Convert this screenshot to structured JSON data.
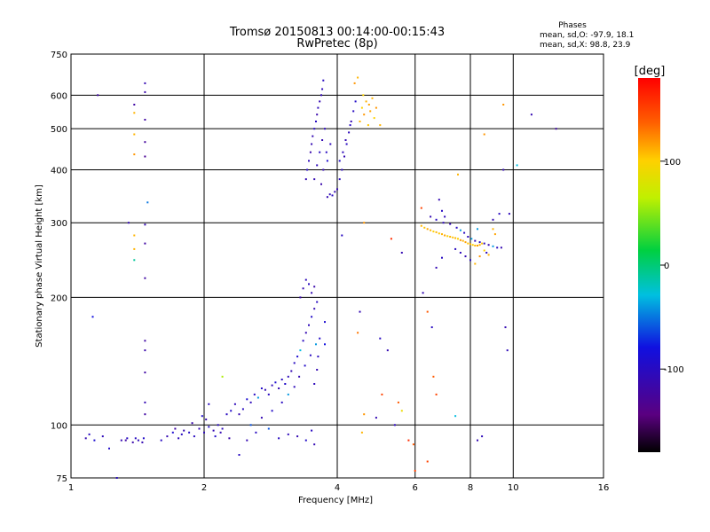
{
  "header": {
    "title_line1": "Tromsø 20150813 00:14:00-00:15:43",
    "title_line2": "RwPretec (8p)",
    "phases_heading": "Phases",
    "phases_o": "mean, sd,O: -97.9, 18.1",
    "phases_x": "mean, sd,X:  98.8, 23.9"
  },
  "chart_data": {
    "type": "scatter",
    "title": "",
    "xlabel": "Frequency [MHz]",
    "ylabel": "Stationary phase Virtual Height [km]",
    "x_scale": "log2",
    "y_scale": "log",
    "xlim": [
      1,
      16
    ],
    "ylim": [
      75,
      750
    ],
    "x_ticks": [
      {
        "value": 1,
        "label": "1"
      },
      {
        "value": 2,
        "label": "2"
      },
      {
        "value": 4,
        "label": "4"
      },
      {
        "value": 6,
        "label": "6"
      },
      {
        "value": 8,
        "label": "8"
      },
      {
        "value": 10,
        "label": "10"
      },
      {
        "value": 16,
        "label": "16"
      }
    ],
    "y_ticks": [
      {
        "value": 75,
        "label": "75"
      },
      {
        "value": 100,
        "label": "100"
      },
      {
        "value": 200,
        "label": "200"
      },
      {
        "value": 300,
        "label": "300"
      },
      {
        "value": 400,
        "label": "400"
      },
      {
        "value": 500,
        "label": "500"
      },
      {
        "value": 600,
        "label": "600"
      },
      {
        "value": 750,
        "label": "750"
      }
    ],
    "grid": true,
    "colorbar": {
      "label": "[deg]",
      "range": [
        -180,
        180
      ],
      "ticks": [
        {
          "value": 100,
          "label": "100"
        },
        {
          "value": 0,
          "label": "0"
        },
        {
          "value": -100,
          "label": "-100"
        }
      ]
    },
    "points": [
      [
        1.08,
        93,
        -110
      ],
      [
        1.1,
        95,
        -100
      ],
      [
        1.13,
        92,
        -90
      ],
      [
        1.18,
        94,
        -105
      ],
      [
        1.22,
        88,
        -95
      ],
      [
        1.15,
        600,
        -120
      ],
      [
        1.3,
        92,
        -110
      ],
      [
        1.34,
        93,
        -100
      ],
      [
        1.38,
        91,
        -115
      ],
      [
        1.42,
        92,
        -105
      ],
      [
        1.46,
        93,
        -95
      ],
      [
        1.33,
        92,
        -120
      ],
      [
        1.4,
        93,
        -100
      ],
      [
        1.45,
        91,
        -110
      ],
      [
        1.35,
        300,
        -110
      ],
      [
        1.39,
        570,
        -120
      ],
      [
        1.39,
        545,
        110
      ],
      [
        1.39,
        485,
        110
      ],
      [
        1.39,
        435,
        120
      ],
      [
        1.39,
        280,
        110
      ],
      [
        1.39,
        260,
        110
      ],
      [
        1.39,
        245,
        -10
      ],
      [
        1.47,
        640,
        -110
      ],
      [
        1.47,
        610,
        -115
      ],
      [
        1.47,
        525,
        -120
      ],
      [
        1.47,
        465,
        -125
      ],
      [
        1.47,
        430,
        -130
      ],
      [
        1.49,
        335,
        -50
      ],
      [
        1.47,
        297,
        -110
      ],
      [
        1.47,
        268,
        -120
      ],
      [
        1.47,
        222,
        -120
      ],
      [
        1.47,
        158,
        -120
      ],
      [
        1.47,
        150,
        -115
      ],
      [
        1.47,
        133,
        -120
      ],
      [
        1.47,
        113,
        -110
      ],
      [
        1.47,
        106,
        -120
      ],
      [
        1.27,
        75,
        -100
      ],
      [
        1.12,
        180,
        -80
      ],
      [
        1.6,
        92,
        -100
      ],
      [
        1.65,
        94,
        -110
      ],
      [
        1.7,
        96,
        -90
      ],
      [
        1.75,
        93,
        -105
      ],
      [
        1.8,
        97,
        -110
      ],
      [
        1.85,
        96,
        -95
      ],
      [
        1.9,
        94,
        -100
      ],
      [
        1.95,
        98,
        -110
      ],
      [
        2.0,
        96,
        -105
      ],
      [
        2.05,
        99,
        -95
      ],
      [
        2.1,
        97,
        -110
      ],
      [
        2.15,
        100,
        -100
      ],
      [
        2.2,
        98,
        -105
      ],
      [
        1.98,
        105,
        -90
      ],
      [
        2.02,
        103,
        -110
      ],
      [
        1.72,
        98,
        -120
      ],
      [
        1.78,
        95,
        -100
      ],
      [
        1.88,
        101,
        -115
      ],
      [
        2.12,
        94,
        -95
      ],
      [
        2.18,
        96,
        -110
      ],
      [
        2.25,
        106,
        -100
      ],
      [
        2.3,
        108,
        -95
      ],
      [
        2.35,
        112,
        -105
      ],
      [
        2.4,
        106,
        -110
      ],
      [
        2.45,
        109,
        -100
      ],
      [
        2.5,
        115,
        -90
      ],
      [
        2.55,
        113,
        -105
      ],
      [
        2.6,
        118,
        -100
      ],
      [
        2.65,
        116,
        -40
      ],
      [
        2.7,
        122,
        -95
      ],
      [
        2.75,
        121,
        -110
      ],
      [
        2.8,
        118,
        -100
      ],
      [
        2.85,
        124,
        -105
      ],
      [
        2.9,
        126,
        -90
      ],
      [
        2.95,
        122,
        -110
      ],
      [
        3.0,
        128,
        -100
      ],
      [
        3.05,
        125,
        -95
      ],
      [
        3.1,
        130,
        -105
      ],
      [
        3.15,
        134,
        -110
      ],
      [
        3.2,
        140,
        -100
      ],
      [
        3.25,
        145,
        -90
      ],
      [
        3.3,
        150,
        -30
      ],
      [
        3.35,
        158,
        -100
      ],
      [
        3.4,
        165,
        -110
      ],
      [
        3.45,
        172,
        -105
      ],
      [
        3.5,
        180,
        -95
      ],
      [
        3.55,
        188,
        -110
      ],
      [
        3.6,
        195,
        -100
      ],
      [
        3.3,
        200,
        -115
      ],
      [
        3.35,
        210,
        -110
      ],
      [
        3.4,
        220,
        -105
      ],
      [
        3.45,
        215,
        -100
      ],
      [
        3.5,
        205,
        -110
      ],
      [
        3.55,
        212,
        -115
      ],
      [
        2.55,
        100,
        -60
      ],
      [
        2.7,
        104,
        -110
      ],
      [
        2.85,
        108,
        -95
      ],
      [
        3.0,
        113,
        -100
      ],
      [
        3.1,
        118,
        -40
      ],
      [
        3.2,
        123,
        -105
      ],
      [
        3.28,
        130,
        -110
      ],
      [
        3.38,
        138,
        -95
      ],
      [
        3.48,
        146,
        -100
      ],
      [
        3.58,
        155,
        -40
      ],
      [
        3.62,
        145,
        -100
      ],
      [
        3.6,
        135,
        -110
      ],
      [
        3.55,
        125,
        -105
      ],
      [
        3.65,
        160,
        -95
      ],
      [
        2.5,
        92,
        -110
      ],
      [
        2.95,
        93,
        -100
      ],
      [
        3.1,
        95,
        -105
      ],
      [
        3.25,
        94,
        -110
      ],
      [
        3.4,
        92,
        -95
      ],
      [
        3.5,
        97,
        -100
      ],
      [
        3.55,
        90,
        -110
      ],
      [
        2.4,
        85,
        -100
      ],
      [
        2.8,
        98,
        -60
      ],
      [
        3.75,
        155,
        -80
      ],
      [
        3.75,
        175,
        -90
      ],
      [
        2.28,
        93,
        -115
      ],
      [
        2.62,
        96,
        -100
      ],
      [
        2.2,
        130,
        60
      ],
      [
        2.05,
        112,
        -100
      ],
      [
        3.4,
        380,
        -110
      ],
      [
        3.45,
        420,
        -105
      ],
      [
        3.5,
        460,
        -110
      ],
      [
        3.55,
        500,
        -100
      ],
      [
        3.6,
        540,
        -115
      ],
      [
        3.65,
        580,
        -110
      ],
      [
        3.7,
        620,
        -105
      ],
      [
        3.72,
        650,
        -100
      ],
      [
        3.68,
        600,
        -110
      ],
      [
        3.62,
        560,
        -105
      ],
      [
        3.58,
        520,
        -100
      ],
      [
        3.52,
        480,
        -110
      ],
      [
        3.48,
        440,
        -115
      ],
      [
        3.42,
        400,
        -100
      ],
      [
        3.55,
        380,
        -110
      ],
      [
        3.6,
        410,
        -105
      ],
      [
        3.65,
        440,
        -100
      ],
      [
        3.7,
        470,
        -110
      ],
      [
        3.75,
        500,
        -105
      ],
      [
        3.78,
        440,
        -100
      ],
      [
        3.72,
        400,
        -110
      ],
      [
        3.68,
        370,
        -115
      ],
      [
        3.8,
        345,
        -110
      ],
      [
        3.85,
        350,
        -105
      ],
      [
        3.9,
        348,
        -100
      ],
      [
        3.95,
        355,
        -110
      ],
      [
        3.8,
        420,
        -90
      ],
      [
        3.86,
        460,
        -105
      ],
      [
        4.0,
        360,
        -110
      ],
      [
        4.05,
        380,
        -100
      ],
      [
        4.1,
        400,
        -105
      ],
      [
        4.15,
        430,
        -110
      ],
      [
        4.2,
        460,
        -100
      ],
      [
        4.25,
        490,
        -105
      ],
      [
        4.3,
        520,
        -110
      ],
      [
        4.35,
        550,
        -100
      ],
      [
        4.4,
        580,
        -95
      ],
      [
        4.12,
        440,
        -105
      ],
      [
        4.18,
        470,
        -110
      ],
      [
        4.28,
        510,
        -100
      ],
      [
        4.05,
        420,
        -95
      ],
      [
        4.5,
        520,
        110
      ],
      [
        4.55,
        560,
        100
      ],
      [
        4.6,
        540,
        120
      ],
      [
        4.65,
        580,
        110
      ],
      [
        4.7,
        510,
        105
      ],
      [
        4.75,
        550,
        115
      ],
      [
        4.8,
        590,
        110
      ],
      [
        4.85,
        530,
        100
      ],
      [
        4.9,
        560,
        120
      ],
      [
        5.0,
        510,
        110
      ],
      [
        4.58,
        600,
        100
      ],
      [
        4.72,
        570,
        115
      ],
      [
        4.45,
        660,
        110
      ],
      [
        4.38,
        640,
        120
      ],
      [
        4.6,
        300,
        120
      ],
      [
        4.1,
        280,
        -100
      ],
      [
        5.3,
        275,
        160
      ],
      [
        5.6,
        255,
        -110
      ],
      [
        4.5,
        185,
        -110
      ],
      [
        4.45,
        165,
        130
      ],
      [
        5.0,
        160,
        -100
      ],
      [
        5.2,
        150,
        -110
      ],
      [
        5.05,
        118,
        150
      ],
      [
        4.6,
        106,
        120
      ],
      [
        4.9,
        104,
        -110
      ],
      [
        5.4,
        100,
        -105
      ],
      [
        5.6,
        108,
        90
      ],
      [
        5.5,
        113,
        140
      ],
      [
        5.8,
        92,
        160
      ],
      [
        5.95,
        90,
        140
      ],
      [
        6.0,
        78,
        150
      ],
      [
        4.55,
        96,
        110
      ],
      [
        6.2,
        295,
        110
      ],
      [
        6.3,
        292,
        105
      ],
      [
        6.4,
        290,
        115
      ],
      [
        6.5,
        288,
        110
      ],
      [
        6.6,
        286,
        100
      ],
      [
        6.7,
        285,
        110
      ],
      [
        6.8,
        283,
        105
      ],
      [
        6.9,
        282,
        110
      ],
      [
        7.0,
        280,
        115
      ],
      [
        7.1,
        279,
        100
      ],
      [
        7.2,
        278,
        110
      ],
      [
        7.3,
        277,
        105
      ],
      [
        7.4,
        276,
        110
      ],
      [
        7.5,
        275,
        100
      ],
      [
        7.6,
        273,
        120
      ],
      [
        7.7,
        272,
        110
      ],
      [
        7.8,
        270,
        115
      ],
      [
        7.9,
        268,
        105
      ],
      [
        8.0,
        267,
        110
      ],
      [
        8.1,
        266,
        100
      ],
      [
        8.2,
        265,
        110
      ],
      [
        8.3,
        265,
        115
      ],
      [
        8.4,
        266,
        110
      ],
      [
        8.5,
        268,
        105
      ],
      [
        6.8,
        340,
        -110
      ],
      [
        6.9,
        320,
        -100
      ],
      [
        7.0,
        310,
        -105
      ],
      [
        6.2,
        325,
        150
      ],
      [
        6.5,
        310,
        -110
      ],
      [
        6.7,
        305,
        -100
      ],
      [
        6.95,
        300,
        -105
      ],
      [
        7.2,
        298,
        -110
      ],
      [
        7.45,
        292,
        -100
      ],
      [
        7.6,
        288,
        -40
      ],
      [
        7.75,
        284,
        -100
      ],
      [
        7.9,
        278,
        -105
      ],
      [
        8.05,
        275,
        -40
      ],
      [
        8.2,
        272,
        -110
      ],
      [
        8.4,
        270,
        -100
      ],
      [
        8.6,
        268,
        -105
      ],
      [
        8.8,
        266,
        -110
      ],
      [
        9.0,
        264,
        -40
      ],
      [
        9.2,
        262,
        -100
      ],
      [
        9.4,
        262,
        -110
      ],
      [
        7.4,
        260,
        -100
      ],
      [
        7.6,
        255,
        -105
      ],
      [
        7.8,
        250,
        -110
      ],
      [
        8.0,
        245,
        -100
      ],
      [
        8.2,
        240,
        110
      ],
      [
        8.4,
        250,
        120
      ],
      [
        8.6,
        258,
        100
      ],
      [
        8.8,
        252,
        110
      ],
      [
        9.0,
        290,
        110
      ],
      [
        9.1,
        282,
        115
      ],
      [
        6.7,
        235,
        -110
      ],
      [
        6.9,
        248,
        -100
      ],
      [
        7.5,
        390,
        110
      ],
      [
        8.6,
        485,
        120
      ],
      [
        9.5,
        570,
        120
      ],
      [
        9.5,
        400,
        -110
      ],
      [
        9.3,
        315,
        -100
      ],
      [
        9.8,
        315,
        -105
      ],
      [
        9.0,
        305,
        -110
      ],
      [
        10.2,
        410,
        -30
      ],
      [
        11.0,
        540,
        -110
      ],
      [
        12.5,
        500,
        -120
      ],
      [
        8.3,
        290,
        -40
      ],
      [
        8.7,
        255,
        -100
      ],
      [
        6.25,
        205,
        -110
      ],
      [
        6.4,
        185,
        140
      ],
      [
        6.55,
        170,
        -100
      ],
      [
        6.6,
        130,
        140
      ],
      [
        6.7,
        118,
        150
      ],
      [
        6.4,
        82,
        150
      ],
      [
        7.4,
        105,
        -30
      ],
      [
        8.3,
        92,
        -110
      ],
      [
        8.5,
        94,
        -105
      ],
      [
        9.6,
        170,
        -110
      ],
      [
        9.7,
        150,
        -105
      ]
    ]
  }
}
